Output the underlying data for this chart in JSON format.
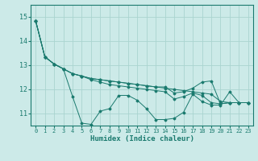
{
  "xlabel": "Humidex (Indice chaleur)",
  "ylabel": "",
  "bg_color": "#cceae8",
  "line_color": "#1a7a6e",
  "grid_color": "#aad4d0",
  "xlim": [
    -0.5,
    23.5
  ],
  "ylim": [
    10.5,
    15.5
  ],
  "yticks": [
    11,
    12,
    13,
    14,
    15
  ],
  "xticks": [
    0,
    1,
    2,
    3,
    4,
    5,
    6,
    7,
    8,
    9,
    10,
    11,
    12,
    13,
    14,
    15,
    16,
    17,
    18,
    19,
    20,
    21,
    22,
    23
  ],
  "series": [
    [
      14.85,
      13.35,
      13.05,
      12.85,
      11.7,
      10.6,
      10.55,
      11.1,
      11.2,
      11.75,
      11.75,
      11.55,
      11.2,
      10.75,
      10.75,
      10.8,
      11.05,
      11.8,
      11.5,
      11.35,
      11.35,
      11.9,
      11.45,
      11.45
    ],
    [
      14.85,
      13.35,
      13.05,
      12.85,
      12.65,
      12.55,
      12.4,
      12.3,
      12.2,
      12.15,
      12.1,
      12.05,
      12.0,
      11.95,
      11.9,
      11.6,
      11.7,
      11.85,
      11.75,
      11.45,
      11.4,
      11.45,
      11.45,
      11.45
    ],
    [
      14.85,
      13.35,
      13.05,
      12.85,
      12.65,
      12.55,
      12.45,
      12.4,
      12.35,
      12.3,
      12.25,
      12.2,
      12.15,
      12.1,
      12.1,
      11.85,
      11.9,
      12.05,
      12.3,
      12.35,
      11.4,
      11.45,
      11.45,
      11.45
    ],
    [
      14.85,
      13.35,
      13.05,
      12.85,
      12.65,
      12.55,
      12.45,
      12.4,
      12.35,
      12.3,
      12.25,
      12.2,
      12.15,
      12.1,
      12.05,
      12.0,
      11.95,
      11.9,
      11.85,
      11.8,
      11.5,
      11.45,
      11.45,
      11.45
    ]
  ]
}
